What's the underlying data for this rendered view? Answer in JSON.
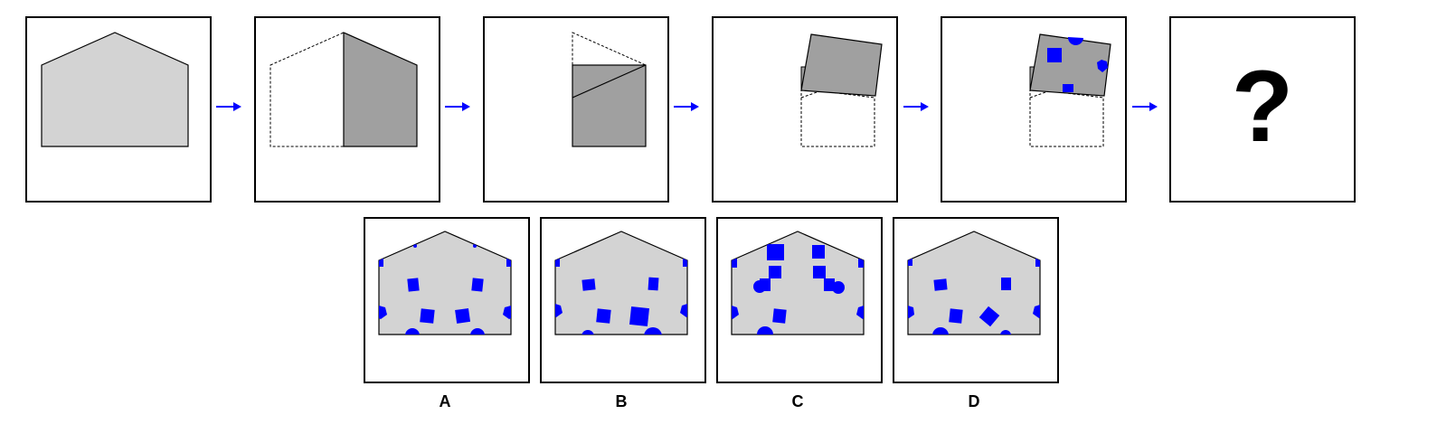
{
  "colors": {
    "paper": "#d3d3d3",
    "fold": "#a0a0a0",
    "hole": "#0000ff",
    "arrow": "#0000ff",
    "border": "#000000"
  },
  "sequence": {
    "steps": [
      "unfolded-paper",
      "fold-left-onto-right",
      "fold-roof-down",
      "rotate-folded-stack",
      "punch-holes"
    ],
    "question_mark": "?"
  },
  "options": [
    {
      "label": "A"
    },
    {
      "label": "B"
    },
    {
      "label": "C"
    },
    {
      "label": "D"
    }
  ]
}
